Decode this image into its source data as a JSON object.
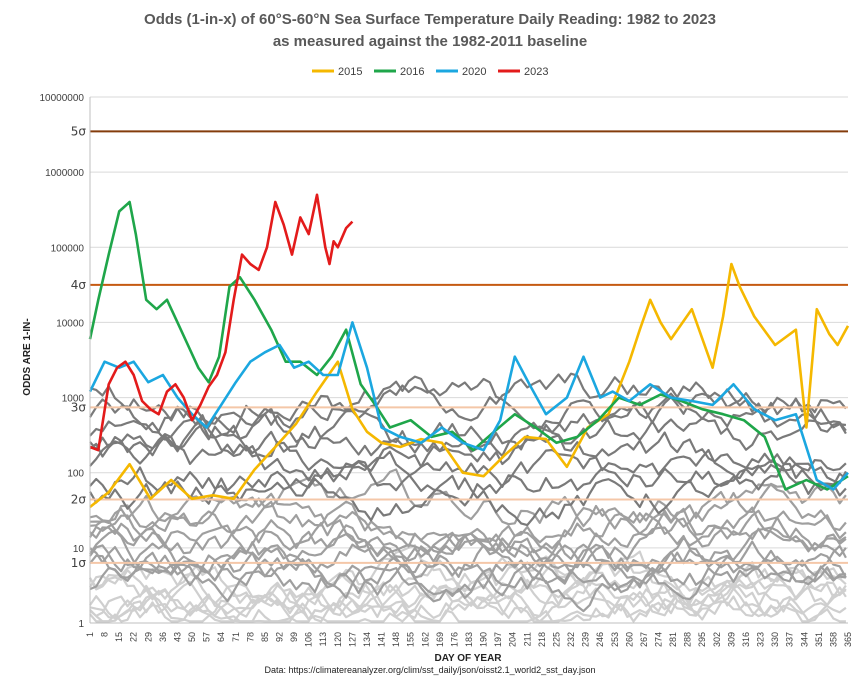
{
  "chart_data": {
    "type": "line",
    "title": "Odds (1-in-x) of 60°S-60°N Sea Surface Temperature Daily Reading: 1982 to 2023",
    "subtitle": "as measured against the 1982-2011 baseline",
    "xlabel": "DAY OF YEAR",
    "ylabel": "ODDS ARE 1-IN-",
    "yscale": "log",
    "ylim": [
      1,
      10000000
    ],
    "xlim": [
      1,
      365
    ],
    "y_ticks": [
      "1",
      "10",
      "100",
      "1000",
      "10000",
      "100000",
      "1000000",
      "10000000"
    ],
    "x_ticks": [
      1,
      8,
      15,
      22,
      29,
      36,
      43,
      50,
      57,
      64,
      71,
      78,
      85,
      92,
      99,
      106,
      113,
      120,
      127,
      134,
      141,
      148,
      155,
      162,
      169,
      176,
      183,
      190,
      197,
      204,
      211,
      218,
      225,
      232,
      239,
      246,
      253,
      260,
      267,
      274,
      281,
      288,
      295,
      302,
      309,
      316,
      323,
      330,
      337,
      344,
      351,
      358,
      365
    ],
    "sigma_lines": [
      {
        "label": "1σ",
        "value": 6.3,
        "color": "#f4c7a8"
      },
      {
        "label": "2σ",
        "value": 44,
        "color": "#f4c7a8"
      },
      {
        "label": "3σ",
        "value": 741,
        "color": "#f4c7a8"
      },
      {
        "label": "4σ",
        "value": 31574,
        "color": "#c55a11"
      },
      {
        "label": "5σ",
        "value": 3488556,
        "color": "#843c0c"
      }
    ],
    "legend": [
      {
        "name": "2015",
        "color": "#f5b800"
      },
      {
        "name": "2016",
        "color": "#1fa64a"
      },
      {
        "name": "2020",
        "color": "#1ba7e0"
      },
      {
        "name": "2023",
        "color": "#e31b1b"
      }
    ],
    "series": [
      {
        "name": "2015",
        "color": "#f5b800",
        "x": [
          1,
          10,
          20,
          30,
          40,
          50,
          60,
          70,
          80,
          90,
          100,
          110,
          120,
          127,
          134,
          141,
          150,
          160,
          170,
          180,
          190,
          200,
          210,
          220,
          230,
          240,
          250,
          260,
          265,
          270,
          275,
          280,
          290,
          300,
          305,
          309,
          313,
          320,
          330,
          340,
          345,
          350,
          356,
          360,
          365
        ],
        "y": [
          35,
          55,
          130,
          45,
          80,
          45,
          50,
          45,
          110,
          220,
          450,
          1200,
          3000,
          700,
          350,
          250,
          220,
          280,
          250,
          100,
          90,
          170,
          300,
          280,
          120,
          400,
          600,
          3000,
          8000,
          20000,
          10000,
          6000,
          15000,
          2500,
          12000,
          60000,
          30000,
          12000,
          5000,
          8000,
          400,
          15000,
          7000,
          5000,
          9000
        ]
      },
      {
        "name": "2016",
        "color": "#1fa64a",
        "x": [
          1,
          5,
          10,
          15,
          20,
          23,
          28,
          33,
          38,
          43,
          48,
          53,
          58,
          63,
          68,
          73,
          80,
          88,
          95,
          102,
          110,
          117,
          124,
          131,
          138,
          145,
          155,
          165,
          175,
          185,
          195,
          205,
          215,
          225,
          235,
          245,
          255,
          265,
          275,
          285,
          295,
          305,
          315,
          325,
          335,
          345,
          355,
          365
        ],
        "y": [
          6000,
          20000,
          80000,
          300000,
          400000,
          150000,
          20000,
          15000,
          20000,
          10000,
          5000,
          2500,
          1600,
          3500,
          30000,
          40000,
          20000,
          8000,
          3000,
          3000,
          2000,
          3500,
          8000,
          1500,
          800,
          400,
          500,
          300,
          350,
          200,
          350,
          600,
          400,
          250,
          300,
          500,
          1000,
          800,
          1100,
          900,
          700,
          600,
          500,
          300,
          60,
          80,
          60,
          90
        ]
      },
      {
        "name": "2020",
        "color": "#1ba7e0",
        "x": [
          1,
          8,
          15,
          22,
          29,
          36,
          43,
          50,
          57,
          64,
          71,
          78,
          85,
          92,
          99,
          106,
          113,
          120,
          127,
          134,
          141,
          150,
          160,
          170,
          180,
          190,
          198,
          205,
          212,
          220,
          230,
          238,
          246,
          252,
          260,
          270,
          280,
          290,
          300,
          310,
          320,
          330,
          340,
          350,
          358,
          365
        ],
        "y": [
          1200,
          3000,
          2500,
          3000,
          1600,
          2000,
          1000,
          600,
          400,
          800,
          1600,
          3000,
          4000,
          5000,
          2500,
          3000,
          2000,
          2000,
          10000,
          2500,
          400,
          300,
          250,
          400,
          250,
          200,
          500,
          3500,
          1500,
          600,
          1000,
          3500,
          1000,
          1200,
          900,
          1500,
          1000,
          900,
          800,
          1500,
          700,
          500,
          600,
          80,
          60,
          100
        ]
      },
      {
        "name": "2023",
        "color": "#e31b1b",
        "x": [
          1,
          5,
          10,
          14,
          18,
          22,
          26,
          30,
          34,
          38,
          42,
          46,
          50,
          54,
          58,
          62,
          66,
          70,
          74,
          78,
          82,
          86,
          90,
          94,
          98,
          102,
          106,
          110,
          114,
          116,
          118,
          120,
          124,
          127
        ],
        "y": [
          220,
          200,
          1500,
          2500,
          3000,
          2000,
          900,
          700,
          600,
          1200,
          1500,
          1000,
          500,
          800,
          1400,
          2000,
          4000,
          20000,
          80000,
          60000,
          50000,
          100000,
          400000,
          200000,
          80000,
          250000,
          150000,
          500000,
          100000,
          60000,
          120000,
          100000,
          180000,
          220000
        ]
      }
    ],
    "background_series_note": "grey lines show other years 1982-2022"
  },
  "source_note": "Data: https://climatereanalyzer.org/clim/sst_daily/json/oisst2.1_world2_sst_day.json"
}
